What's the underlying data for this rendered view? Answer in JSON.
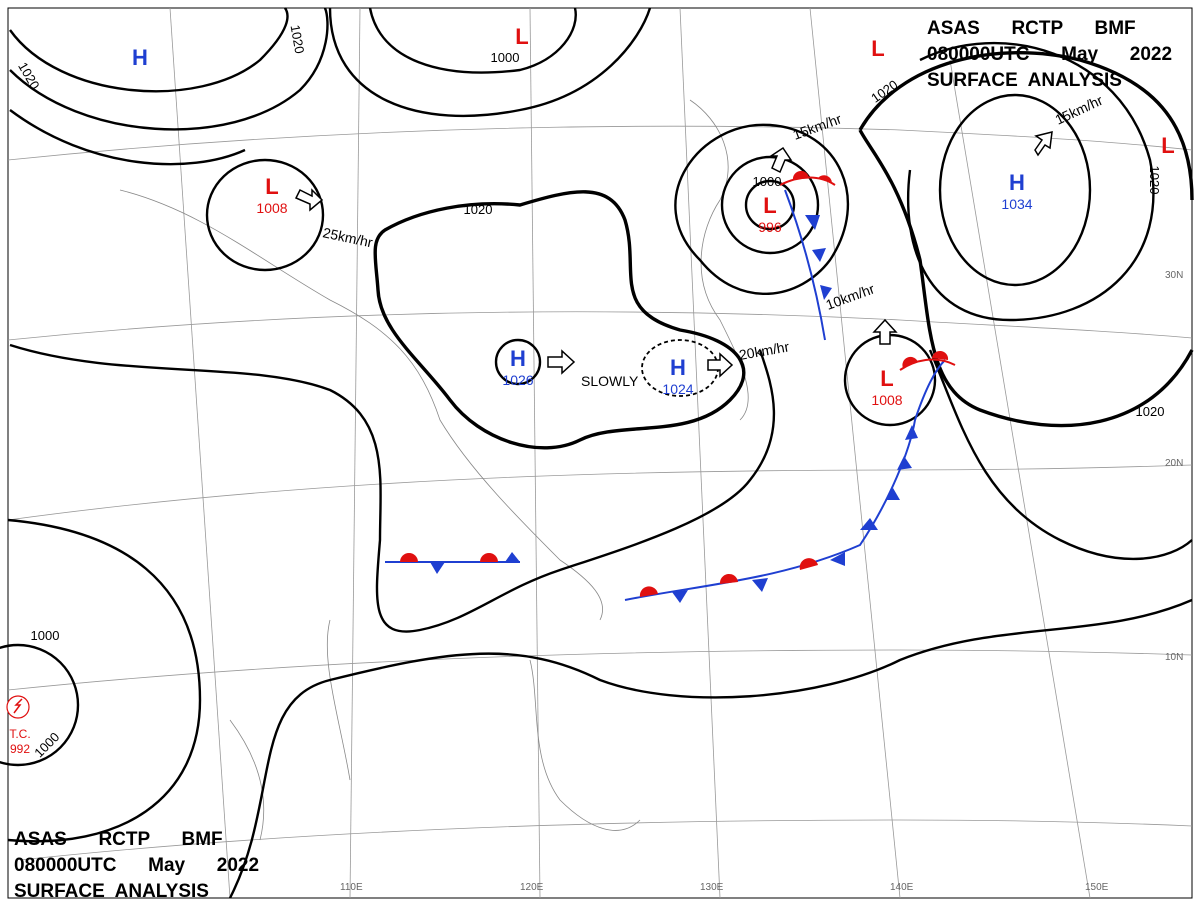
{
  "header": {
    "lines": [
      "ASAS      RCTP      BMF",
      "080000UTC      May      2022",
      "SURFACE  ANALYSIS"
    ]
  },
  "centers": [
    {
      "type": "H",
      "color": "#1f3fd1"
    },
    {
      "type": "L",
      "value": "1008",
      "color": "#e01010"
    },
    {
      "type": "L",
      "color": "#e01010"
    },
    {
      "type": "H",
      "value": "1026",
      "color": "#1f3fd1"
    },
    {
      "type": "H",
      "value": "1024",
      "color": "#1f3fd1"
    },
    {
      "type": "L",
      "value": "996",
      "color": "#e01010"
    },
    {
      "type": "L",
      "value": "1008",
      "color": "#e01010"
    },
    {
      "type": "H",
      "value": "1034",
      "color": "#1f3fd1"
    },
    {
      "type": "L",
      "color": "#e01010"
    },
    {
      "type": "L",
      "color": "#e01010"
    }
  ],
  "isobar_labels": [
    "1020",
    "1020",
    "1000",
    "1020",
    "1000",
    "1020",
    "1020",
    "1020",
    "1000",
    "1000"
  ],
  "motions": [
    "25km/hr",
    "15km/hr",
    "SLOWLY",
    "20km/hr",
    "10km/hr",
    "15km/hr"
  ],
  "tropical_cyclone": {
    "label": "T.C.",
    "pressure": "992"
  },
  "longitudes": [
    "110E",
    "120E",
    "130E",
    "140E",
    "150E"
  ],
  "latitudes": [
    "10N",
    "20N",
    "30N"
  ]
}
